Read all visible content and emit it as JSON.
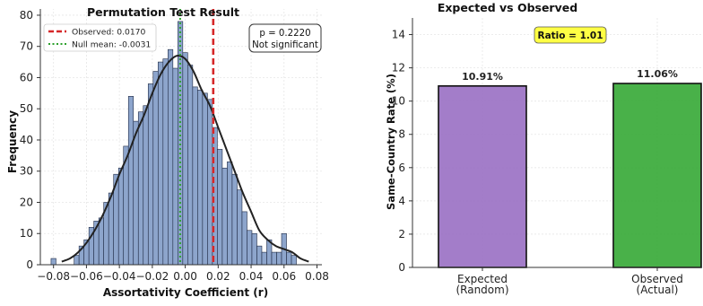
{
  "colors": {
    "hist_fill": "#8da5cc",
    "hist_edge": "#1f2a44",
    "kde_line": "#222222",
    "observed_line": "#d62728",
    "null_mean_line": "#2ca02c",
    "expected_bar": "#9b72c4",
    "observed_bar": "#3aaa3a",
    "ratio_box": "#ffff44",
    "grid": "#e6e6e6"
  },
  "chart_data": [
    {
      "type": "bar",
      "title": "Permutation Test Result",
      "xlabel": "Assortativity Coefficient (r)",
      "ylabel": "Frequency",
      "xlim": [
        -0.088,
        0.083
      ],
      "ylim": [
        0,
        82
      ],
      "xticks": [
        -0.08,
        -0.06,
        -0.04,
        -0.02,
        0.0,
        0.02,
        0.04,
        0.06,
        0.08
      ],
      "xtick_labels": [
        "−0.08",
        "−0.06",
        "−0.04",
        "−0.02",
        "0.00",
        "0.02",
        "0.04",
        "0.06",
        "0.08"
      ],
      "yticks": [
        0,
        10,
        20,
        30,
        40,
        50,
        60,
        70,
        80
      ],
      "bins": {
        "x_start": [
          -0.0815,
          -0.0675,
          -0.0645,
          -0.0615,
          -0.0585,
          -0.0555,
          -0.0525,
          -0.0495,
          -0.0465,
          -0.0435,
          -0.0405,
          -0.0375,
          -0.0345,
          -0.0315,
          -0.0285,
          -0.0255,
          -0.0225,
          -0.0195,
          -0.0165,
          -0.0135,
          -0.0105,
          -0.0075,
          -0.0045,
          -0.0015,
          0.0015,
          0.0045,
          0.0075,
          0.0105,
          0.0135,
          0.0165,
          0.0195,
          0.0225,
          0.0255,
          0.0285,
          0.0315,
          0.0345,
          0.0375,
          0.0405,
          0.0435,
          0.0465,
          0.0495,
          0.0525,
          0.0555,
          0.0585,
          0.0615,
          0.0645
        ],
        "width": 0.003,
        "values": [
          2,
          3,
          6,
          8,
          12,
          14,
          15,
          20,
          23,
          29,
          31,
          38,
          54,
          46,
          49,
          51,
          58,
          62,
          65,
          66,
          69,
          63,
          78,
          68,
          64,
          57,
          56,
          55,
          53,
          44,
          37,
          31,
          33,
          29,
          24,
          17,
          11,
          10,
          6,
          4,
          8,
          4,
          4,
          10,
          4,
          3
        ]
      },
      "kde": {
        "x": [
          -0.075,
          -0.07,
          -0.065,
          -0.06,
          -0.055,
          -0.05,
          -0.045,
          -0.04,
          -0.035,
          -0.03,
          -0.025,
          -0.02,
          -0.015,
          -0.01,
          -0.005,
          0.0,
          0.005,
          0.01,
          0.015,
          0.02,
          0.025,
          0.03,
          0.035,
          0.04,
          0.045,
          0.05,
          0.055,
          0.06,
          0.065,
          0.07,
          0.075
        ],
        "y": [
          1,
          2,
          4,
          7,
          11,
          16,
          22,
          29,
          35,
          42,
          48,
          55,
          61,
          65,
          67,
          66,
          62,
          56,
          51,
          44,
          37,
          30,
          23,
          17,
          11,
          8,
          6,
          5,
          4,
          2,
          1
        ]
      },
      "vlines": [
        {
          "name": "Observed: 0.0170",
          "x": 0.017,
          "style": "dashed"
        },
        {
          "name": "Null mean: -0.0031",
          "x": -0.0031,
          "style": "dotted"
        }
      ],
      "legend": "top-left",
      "annotation": {
        "line1": "p = 0.2220",
        "line2": "Not significant"
      }
    },
    {
      "type": "bar",
      "title": "Expected vs Observed",
      "ylabel": "Same-Country Rate (%)",
      "categories": [
        "Expected\n(Random)",
        "Observed\n(Actual)"
      ],
      "category_lines": [
        [
          "Expected",
          "(Random)"
        ],
        [
          "Observed",
          "(Actual)"
        ]
      ],
      "values": [
        10.91,
        11.06
      ],
      "value_labels": [
        "10.91%",
        "11.06%"
      ],
      "ylim": [
        0,
        15
      ],
      "yticks": [
        0,
        2,
        4,
        6,
        8,
        10,
        12,
        14
      ],
      "annotation": "Ratio = 1.01"
    }
  ]
}
